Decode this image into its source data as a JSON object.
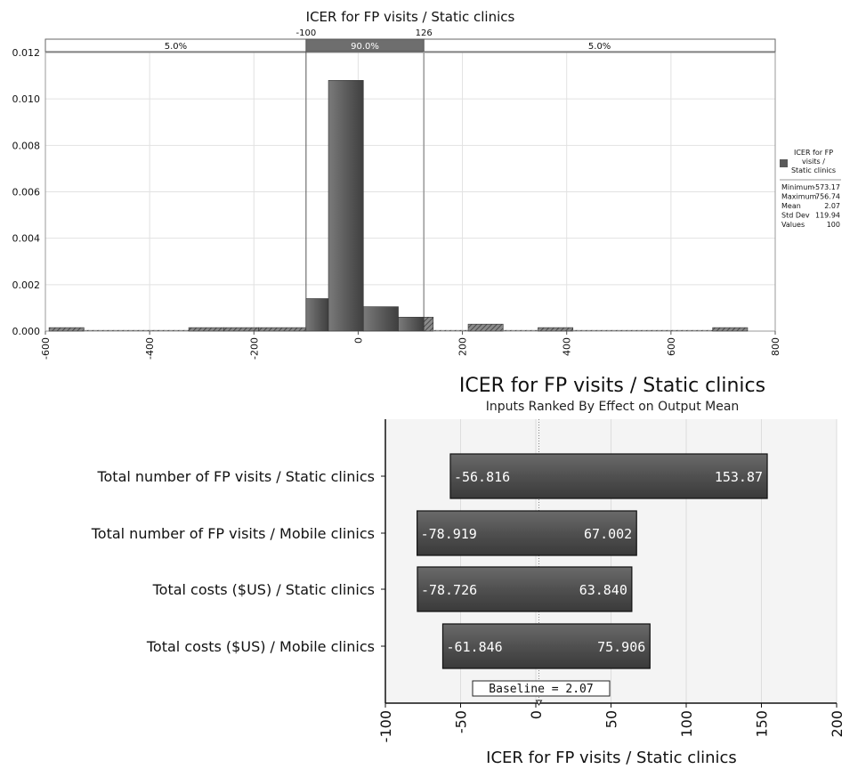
{
  "chart_data": [
    {
      "type": "bar",
      "title": "ICER for FP visits / Static clinics",
      "xlim": [
        -600,
        800
      ],
      "ylim": [
        0,
        0.012
      ],
      "x_ticks": [
        "-600",
        "-400",
        "-200",
        "0",
        "200",
        "400",
        "600",
        "800"
      ],
      "y_ticks": [
        "0.000",
        "0.002",
        "0.004",
        "0.006",
        "0.008",
        "0.010",
        "0.012"
      ],
      "grid": true,
      "bins": [
        {
          "from": -593,
          "to": -526,
          "density": 0.00015,
          "style": "hatched"
        },
        {
          "from": -526,
          "to": -392,
          "density": 0.0,
          "style": "hatched"
        },
        {
          "from": -392,
          "to": -325,
          "density": 0.0,
          "style": "hatched"
        },
        {
          "from": -325,
          "to": -258,
          "density": 0.00015,
          "style": "hatched"
        },
        {
          "from": -258,
          "to": -191,
          "density": 0.00015,
          "style": "hatched"
        },
        {
          "from": -191,
          "to": -100,
          "density": 0.00015,
          "style": "hatched"
        },
        {
          "from": -100,
          "to": -57,
          "density": 0.0014,
          "style": "solid"
        },
        {
          "from": -57,
          "to": 10,
          "density": 0.0108,
          "style": "solid"
        },
        {
          "from": 10,
          "to": 77,
          "density": 0.00105,
          "style": "solid"
        },
        {
          "from": 77,
          "to": 126,
          "density": 0.0006,
          "style": "solid"
        },
        {
          "from": 126,
          "to": 144,
          "density": 0.0006,
          "style": "hatched"
        },
        {
          "from": 144,
          "to": 211,
          "density": 0.0,
          "style": "hatched"
        },
        {
          "from": 211,
          "to": 278,
          "density": 0.0003,
          "style": "hatched"
        },
        {
          "from": 278,
          "to": 345,
          "density": 0.0,
          "style": "hatched"
        },
        {
          "from": 345,
          "to": 412,
          "density": 0.00015,
          "style": "hatched"
        },
        {
          "from": 412,
          "to": 546,
          "density": 0.0,
          "style": "hatched"
        },
        {
          "from": 546,
          "to": 680,
          "density": 0.0,
          "style": "hatched"
        },
        {
          "from": 680,
          "to": 747,
          "density": 0.00015,
          "style": "hatched"
        }
      ],
      "percentile_band": {
        "lower": -100,
        "upper": 126,
        "lower_label": "-100",
        "upper_label": "126",
        "left_label": "5.0%",
        "middle_label": "90.0%",
        "right_label": "5.0%"
      },
      "legend": {
        "series_name": "ICER for FP visits / Static clinics",
        "placement": "right",
        "stats": [
          {
            "label": "Minimum",
            "value": "-573.17"
          },
          {
            "label": "Maximum",
            "value": "756.74"
          },
          {
            "label": "Mean",
            "value": "2.07"
          },
          {
            "label": "Std Dev",
            "value": "119.94"
          },
          {
            "label": "Values",
            "value": "100"
          }
        ]
      },
      "colors": {
        "bar": "#5a5a5a",
        "band": "#6e6e6e"
      }
    },
    {
      "type": "bar",
      "orientation": "horizontal",
      "title": "ICER for FP visits / Static clinics",
      "subtitle": "Inputs Ranked By Effect on Output Mean",
      "xlabel": "ICER for FP visits / Static clinics",
      "xlim": [
        -100,
        200
      ],
      "x_ticks": [
        "-100",
        "-50",
        "0",
        "50",
        "100",
        "150",
        "200"
      ],
      "grid": true,
      "baseline": 2.07,
      "baseline_label": "Baseline = 2.07",
      "categories": [
        "Total number of FP visits / Static clinics",
        "Total number of FP visits / Mobile clinics",
        "Total costs ($US) / Static clinics",
        "Total costs ($US) / Mobile clinics"
      ],
      "series": [
        {
          "low": -56.816,
          "high": 153.87,
          "low_label": "-56.816",
          "high_label": "153.87"
        },
        {
          "low": -78.919,
          "high": 67.002,
          "low_label": "-78.919",
          "high_label": "67.002"
        },
        {
          "low": -78.726,
          "high": 63.84,
          "low_label": "-78.726",
          "high_label": "63.840"
        },
        {
          "low": -61.846,
          "high": 75.906,
          "low_label": "-61.846",
          "high_label": "75.906"
        }
      ],
      "colors": {
        "bar": "#4a4a4a",
        "plot_bg": "#f4f4f4"
      }
    }
  ]
}
